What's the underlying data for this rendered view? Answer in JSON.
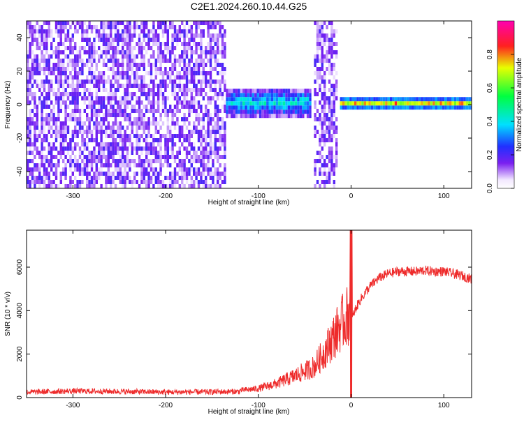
{
  "chart_data": [
    {
      "type": "heatmap",
      "title": "C2E1.2024.260.10.44.G25",
      "xlabel": "Height of straight line (km)",
      "ylabel": "Frequency (Hz)",
      "xlim": [
        -350,
        130
      ],
      "ylim": [
        -50,
        50
      ],
      "xticks": [
        -300,
        -200,
        -100,
        0,
        100
      ],
      "yticks": [
        -40,
        -20,
        0,
        20,
        40
      ],
      "colorbar": {
        "label": "Normalized spectral amplitude",
        "range": [
          0,
          1
        ],
        "ticks": [
          "0.0",
          "0.2",
          "0.4",
          "0.6",
          "0.8"
        ]
      },
      "regions": [
        {
          "x_range": [
            -350,
            -135
          ],
          "description_amp": 0.12,
          "freq_spread": 50
        },
        {
          "x_range": [
            -135,
            -45
          ],
          "description_amp": 0.4,
          "freq_spread": 8
        },
        {
          "x_range": [
            -40,
            -15
          ],
          "description_amp": 0.12,
          "freq_spread": 50
        },
        {
          "x_range": [
            -12,
            130
          ],
          "description_amp": 0.75,
          "freq_spread": 3
        }
      ],
      "grid": false
    },
    {
      "type": "line",
      "xlabel": "Height of straight line (km)",
      "ylabel": "SNR (10 * v/v)",
      "xlim": [
        -350,
        130
      ],
      "ylim": [
        0,
        7700
      ],
      "xticks": [
        -300,
        -200,
        -100,
        0,
        100
      ],
      "yticks": [
        0,
        2000,
        4000,
        6000
      ],
      "series": [
        {
          "color": "#ee2b2b",
          "x": [
            -350,
            -300,
            -250,
            -200,
            -150,
            -120,
            -100,
            -80,
            -60,
            -40,
            -30,
            -20,
            -10,
            -5,
            0,
            5,
            10,
            20,
            30,
            40,
            50,
            60,
            70,
            80,
            90,
            100,
            110,
            120,
            130
          ],
          "values": [
            250,
            300,
            280,
            250,
            260,
            280,
            350,
            550,
            850,
            1200,
            1700,
            2300,
            2900,
            3100,
            3500,
            4100,
            4500,
            5100,
            5500,
            5700,
            5800,
            5800,
            5800,
            5850,
            5800,
            5800,
            5700,
            5600,
            5450
          ]
        }
      ],
      "grid": false
    }
  ],
  "colors": {
    "line": "#ee2b2b",
    "spectrum_low": "#7a1ff0",
    "spectrum_mid": "#00e0ff",
    "spectrum_high": "#ff1a1a"
  }
}
